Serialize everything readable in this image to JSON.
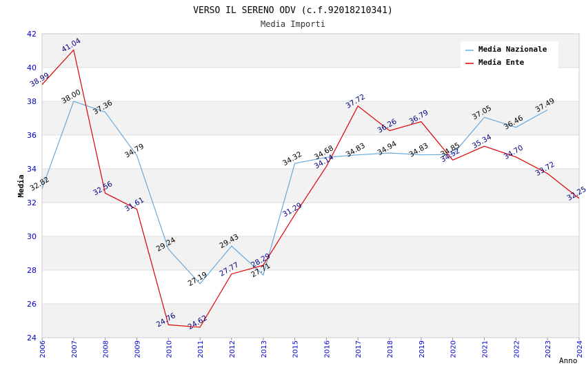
{
  "chart_data": {
    "type": "line",
    "title": "VERSO IL SERENO ODV (c.f.92018210341)",
    "subtitle": "Media Importi",
    "xlabel": "Anno",
    "ylabel": "Media",
    "ylim": [
      24,
      42
    ],
    "yticks": [
      24,
      26,
      28,
      30,
      32,
      34,
      36,
      38,
      40,
      42
    ],
    "categories": [
      "2006",
      "2007",
      "2008",
      "2009",
      "2010",
      "2011",
      "2012",
      "2013",
      "2015",
      "2016",
      "2017",
      "2018",
      "2019",
      "2020",
      "2021",
      "2022",
      "2023",
      "2024"
    ],
    "grid": true,
    "legend_position": "top-right",
    "series": [
      {
        "name": "Media Nazionale",
        "color": "#66aadd",
        "label_color": "#000000",
        "values": [
          32.82,
          38.0,
          37.36,
          34.79,
          29.24,
          27.19,
          29.43,
          27.71,
          34.32,
          34.68,
          34.83,
          34.94,
          34.83,
          34.85,
          37.05,
          36.46,
          37.49,
          null
        ]
      },
      {
        "name": "Media Ente",
        "color": "#dd0000",
        "label_color": "#000080",
        "values": [
          38.99,
          41.04,
          32.56,
          31.61,
          24.76,
          24.62,
          27.77,
          28.29,
          31.29,
          34.14,
          37.72,
          36.26,
          36.79,
          34.52,
          35.34,
          34.7,
          33.72,
          32.25
        ]
      }
    ]
  }
}
